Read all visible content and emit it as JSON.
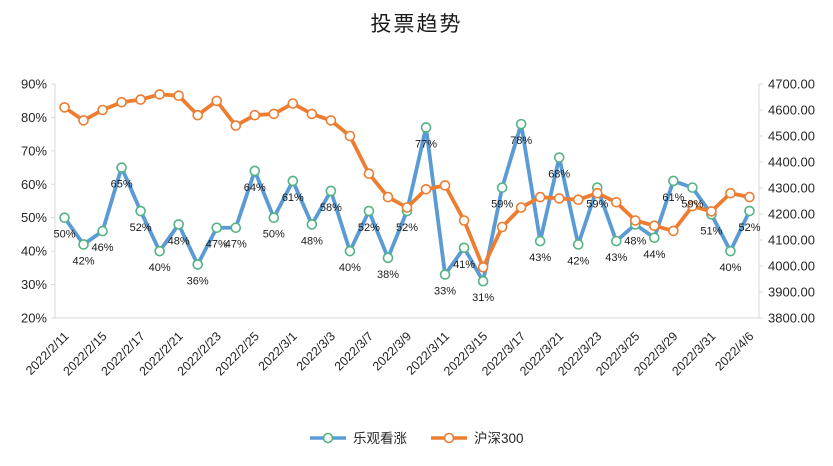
{
  "title": "投票趋势",
  "legend": {
    "position": "bottom",
    "items": [
      {
        "label": "乐观看涨",
        "color": "#5B9BD5",
        "marker_stroke": "#54B483"
      },
      {
        "label": "沪深300",
        "color": "#ED7D31",
        "marker_stroke": "#ED7D31"
      }
    ]
  },
  "colors": {
    "blue_series": "#5B9BD5",
    "orange_series": "#ED7D31",
    "marker_green": "#54B483",
    "marker_fill": "#FFFFFF",
    "axis_line": "#D9D9D9",
    "tick_text": "#262626"
  },
  "chart_data": {
    "type": "line",
    "title": "投票趋势",
    "n_points": 37,
    "x_tick_labels": [
      "2022/2/11",
      "2022/2/15",
      "2022/2/17",
      "2022/2/21",
      "2022/2/23",
      "2022/2/25",
      "2022/3/1",
      "2022/3/3",
      "2022/3/7",
      "2022/3/9",
      "2022/3/11",
      "2022/3/15",
      "2022/3/17",
      "2022/3/21",
      "2022/3/23",
      "2022/3/25",
      "2022/3/29",
      "2022/3/31",
      "2022/4/6"
    ],
    "x_tick_every": 2,
    "grid": false,
    "legend_position": "bottom",
    "left_axis": {
      "min": 20,
      "max": 90,
      "step": 10,
      "tick_labels": [
        "20%",
        "30%",
        "40%",
        "50%",
        "60%",
        "70%",
        "80%",
        "90%"
      ]
    },
    "right_axis": {
      "min": 3800,
      "max": 4700,
      "step": 100,
      "tick_labels": [
        "3800.00",
        "3900.00",
        "4000.00",
        "4100.00",
        "4200.00",
        "4300.00",
        "4400.00",
        "4500.00",
        "4600.00",
        "4700.00"
      ]
    },
    "series": [
      {
        "name": "乐观看涨",
        "axis": "left",
        "unit": "%",
        "color": "#5B9BD5",
        "marker_stroke": "#54B483",
        "data_labels": true,
        "values": [
          50,
          42,
          46,
          65,
          52,
          40,
          48,
          36,
          47,
          47,
          64,
          50,
          61,
          48,
          58,
          40,
          52,
          38,
          52,
          77,
          33,
          41,
          31,
          59,
          78,
          43,
          68,
          42,
          59,
          43,
          48,
          44,
          61,
          59,
          51,
          40,
          52
        ]
      },
      {
        "name": "沪深300",
        "axis": "right",
        "unit": "",
        "color": "#ED7D31",
        "marker_stroke": "#ED7D31",
        "data_labels": false,
        "values": [
          4610,
          4560,
          4600,
          4630,
          4640,
          4660,
          4655,
          4580,
          4635,
          4540,
          4580,
          4585,
          4625,
          4585,
          4560,
          4500,
          4355,
          4265,
          4225,
          4295,
          4310,
          4175,
          3995,
          4150,
          4225,
          4265,
          4260,
          4255,
          4280,
          4245,
          4175,
          4155,
          4135,
          4230,
          4210,
          4280,
          4265
        ]
      }
    ]
  }
}
